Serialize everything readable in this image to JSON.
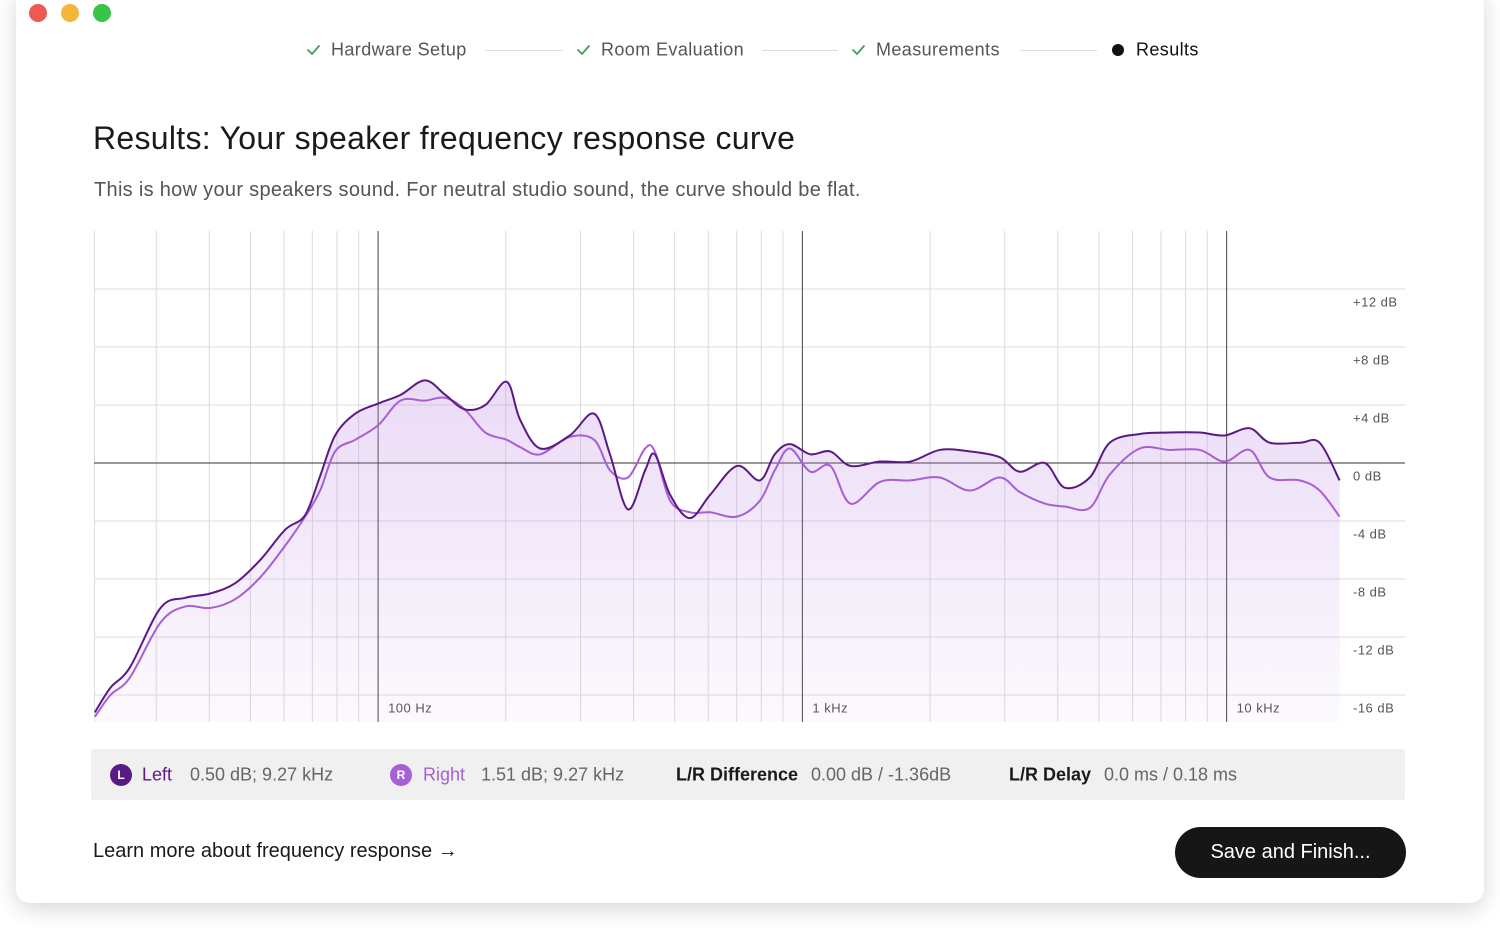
{
  "steps": [
    {
      "label": "Hardware Setup",
      "status": "done"
    },
    {
      "label": "Room Evaluation",
      "status": "done"
    },
    {
      "label": "Measurements",
      "status": "done"
    },
    {
      "label": "Results",
      "status": "current"
    }
  ],
  "title": "Results: Your speaker frequency response curve",
  "subtitle": "This is how your speakers sound. For neutral studio sound, the curve should be flat.",
  "chart_data": {
    "type": "line",
    "xscale": "log",
    "xlim": [
      21.4,
      18500
    ],
    "ylim": [
      -18,
      16
    ],
    "xticks": [
      {
        "value": 100,
        "label": "100 Hz"
      },
      {
        "value": 1000,
        "label": "1 kHz"
      },
      {
        "value": 10000,
        "label": "10 kHz"
      }
    ],
    "minor_xticks": [
      30,
      40,
      50,
      60,
      70,
      80,
      90,
      200,
      300,
      400,
      500,
      600,
      700,
      800,
      900,
      2000,
      3000,
      4000,
      5000,
      6000,
      7000,
      8000,
      9000
    ],
    "yticks": [
      {
        "value": 12,
        "label": "+12 dB"
      },
      {
        "value": 8,
        "label": "+8 dB"
      },
      {
        "value": 4,
        "label": "+4 dB"
      },
      {
        "value": 0,
        "label": "0 dB"
      },
      {
        "value": -4,
        "label": "-4 dB"
      },
      {
        "value": -8,
        "label": "-8 dB"
      },
      {
        "value": -12,
        "label": "-12 dB"
      },
      {
        "value": -16,
        "label": "-16 dB"
      }
    ],
    "grid": true,
    "x": [
      21.5,
      23.4,
      26,
      30.7,
      35.1,
      40.2,
      46,
      52.7,
      60.4,
      67.3,
      73,
      79.2,
      88.3,
      100,
      113,
      129,
      144,
      160,
      179,
      201,
      216,
      241,
      283,
      323,
      352,
      388,
      426,
      449,
      488,
      543,
      606,
      701,
      794,
      861,
      934,
      1044,
      1164,
      1298,
      1526,
      1797,
      2108,
      2480,
      2919,
      3253,
      3727,
      4153,
      4757,
      5302,
      6239,
      7340,
      8638,
      9892,
      11330,
      12630,
      14860,
      16560,
      18460
    ],
    "series": [
      {
        "name": "Left",
        "badge": "L",
        "reading": "0.50 dB; 9.27 kHz",
        "color": "#5a1a86",
        "values": [
          -17.2,
          -15.5,
          -14.1,
          -10.0,
          -9.3,
          -9.0,
          -8.3,
          -6.7,
          -4.6,
          -3.6,
          -0.9,
          1.9,
          3.4,
          4.1,
          4.7,
          5.7,
          4.7,
          3.7,
          4.0,
          5.6,
          3.0,
          1.0,
          1.9,
          3.4,
          0.6,
          -3.2,
          -0.5,
          0.6,
          -2.2,
          -3.8,
          -2.2,
          -0.2,
          -1.2,
          0.6,
          1.3,
          0.6,
          0.8,
          -0.2,
          0.1,
          0.1,
          0.9,
          0.8,
          0.4,
          -0.6,
          0,
          -1.7,
          -1.0,
          1.4,
          2.0,
          2.1,
          2.1,
          1.9,
          2.4,
          1.4,
          1.4,
          1.4,
          -1.2
        ]
      },
      {
        "name": "Right",
        "badge": "R",
        "reading": "1.51 dB; 9.27 kHz",
        "color": "#a65fd4",
        "values": [
          -17.5,
          -16.0,
          -14.8,
          -11.0,
          -9.9,
          -10.0,
          -9.4,
          -7.9,
          -5.7,
          -3.7,
          -1.9,
          0.8,
          1.6,
          2.6,
          4.3,
          4.3,
          4.5,
          3.7,
          2.1,
          1.6,
          1.1,
          0.6,
          1.8,
          1.6,
          -0.5,
          -1.0,
          1.0,
          0.8,
          -2.6,
          -3.4,
          -3.4,
          -3.7,
          -2.6,
          -0.5,
          1.0,
          -0.6,
          -0.2,
          -2.8,
          -1.3,
          -1.2,
          -1.0,
          -1.9,
          -1.0,
          -2.0,
          -2.8,
          -3.0,
          -3.1,
          -0.8,
          1.0,
          0.9,
          0.9,
          0.1,
          0.9,
          -1.0,
          -1.2,
          -1.9,
          -3.7
        ]
      }
    ]
  },
  "summary": [
    {
      "label": "L/R Difference",
      "value": "0.00 dB / -1.36dB"
    },
    {
      "label": "L/R Delay",
      "value": "0.0 ms / 0.18 ms"
    }
  ],
  "footer": {
    "link": "Learn more about frequency response →",
    "button": "Save and Finish..."
  }
}
